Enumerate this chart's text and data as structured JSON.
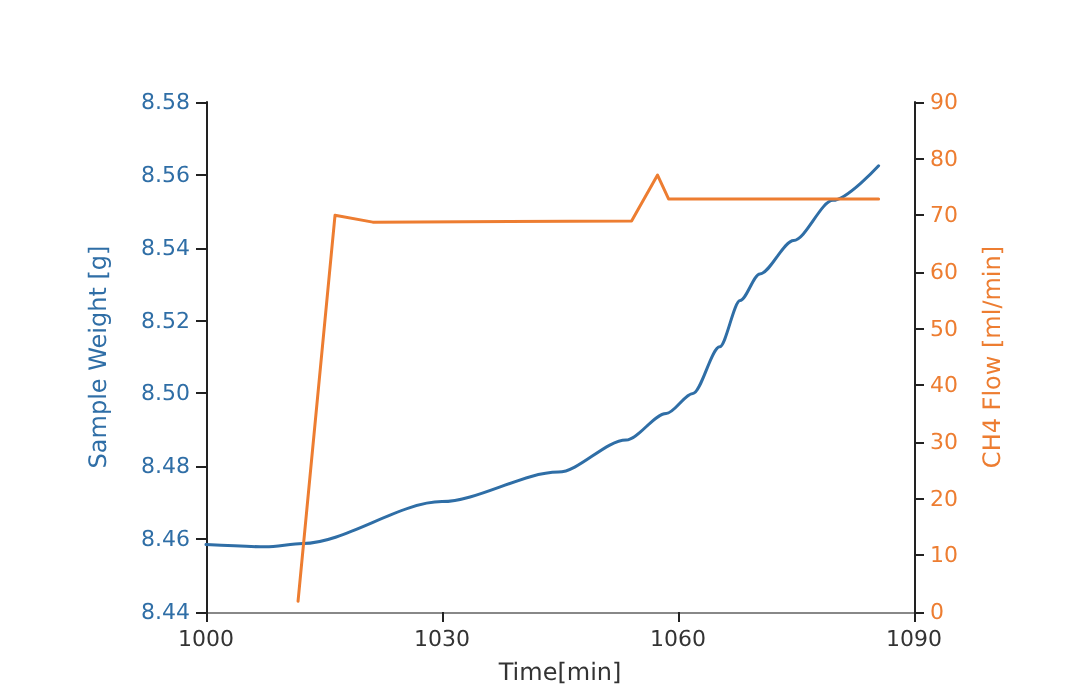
{
  "chart_data": {
    "type": "line",
    "xlabel": "Time[min]",
    "ylabel": "Sample Weight [g]",
    "y2label": "CH4 Flow [ml/min]",
    "xlim": [
      1000,
      1090
    ],
    "xticks": [
      1000,
      1030,
      1060,
      1090
    ],
    "ylim": [
      8.44,
      8.58
    ],
    "yticks": [
      8.44,
      8.46,
      8.48,
      {
        "value": 8.5,
        "label": "8.50"
      },
      8.52,
      8.54,
      8.56,
      8.58
    ],
    "y2lim": [
      0,
      90
    ],
    "y2ticks": [
      0,
      10,
      20,
      30,
      40,
      50,
      60,
      70,
      80,
      90
    ],
    "marker": "none",
    "line_style": "solid",
    "series": [
      {
        "color": "#2f6ea6",
        "x": [
          1000,
          1007.6,
          1012.3,
          1030,
          1044.8,
          1053.4,
          1058.5,
          1061.9,
          1065.3,
          1067.9,
          1070.4,
          1074.7,
          1079.7,
          1085.5
        ],
        "values": [
          8.4585,
          8.4579,
          8.4588,
          8.4703,
          8.4784,
          8.4872,
          8.4945,
          8.5,
          8.5128,
          8.5255,
          8.5328,
          8.542,
          8.553,
          8.5625
        ]
      },
      {
        "color": "#ed7d31",
        "axis": "y2",
        "x": [
          1011.7,
          1016.4,
          1021.2,
          1054.1,
          1057.4,
          1058.8,
          1085.5
        ],
        "values": [
          1.9,
          70,
          68.8,
          69,
          77.1,
          72.9,
          72.9
        ]
      }
    ]
  }
}
